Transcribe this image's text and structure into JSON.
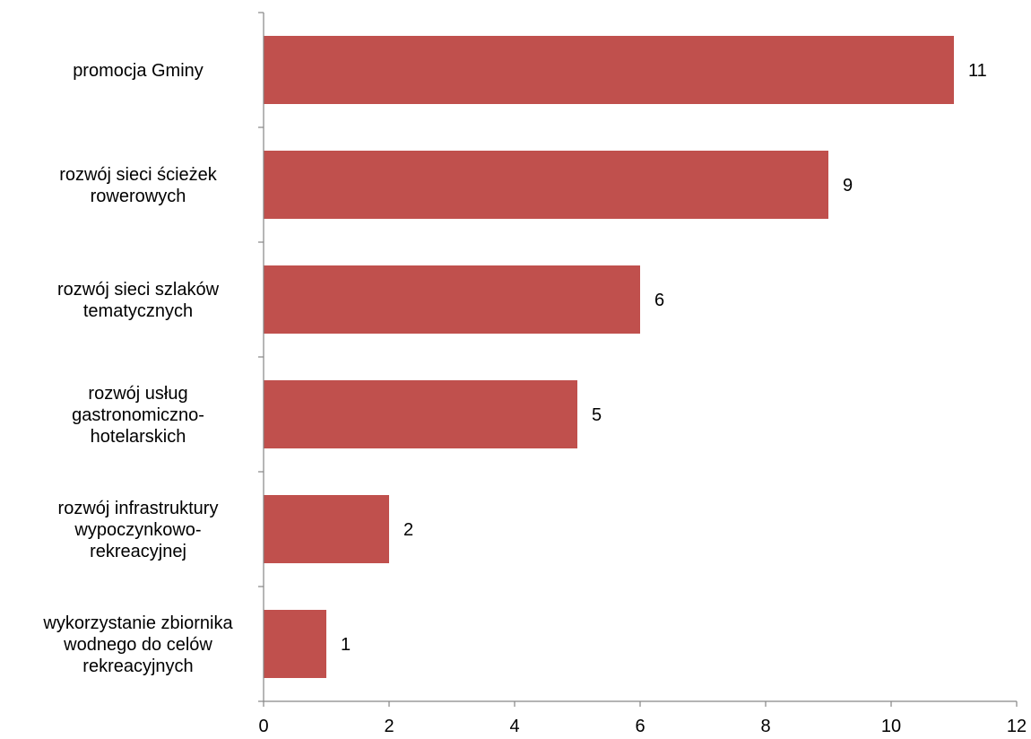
{
  "chart_data": {
    "type": "bar",
    "orientation": "horizontal",
    "categories": [
      [
        "promocja Gminy"
      ],
      [
        "rozwój sieci ścieżek",
        "rowerowych"
      ],
      [
        "rozwój sieci szlaków",
        "tematycznych"
      ],
      [
        "rozwój usług",
        "gastronomiczno-",
        "hotelarskich"
      ],
      [
        "rozwój infrastruktury",
        "wypoczynkowo-",
        "rekreacyjnej"
      ],
      [
        "wykorzystanie zbiornika",
        "wodnego do celów",
        "rekreacyjnych"
      ]
    ],
    "values": [
      11,
      9,
      6,
      5,
      2,
      1
    ],
    "data_labels": [
      "11",
      "9",
      "6",
      "5",
      "2",
      "1"
    ],
    "xlim": [
      0,
      12
    ],
    "x_ticks": [
      0,
      2,
      4,
      6,
      8,
      10,
      12
    ],
    "x_tick_labels": [
      "0",
      "2",
      "4",
      "6",
      "8",
      "10",
      "12"
    ],
    "title": "",
    "xlabel": "",
    "ylabel": "",
    "grid": false,
    "legend": "none",
    "bar_color": "#c0504d",
    "axis_color": "#868686"
  }
}
